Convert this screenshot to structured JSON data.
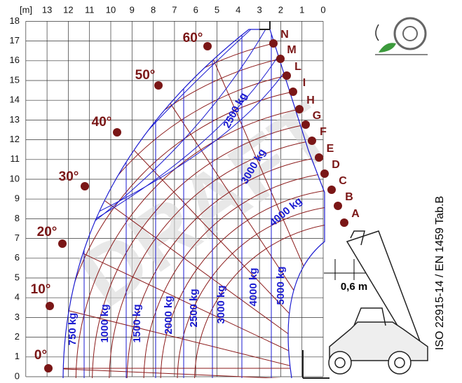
{
  "axes": {
    "x_unit": "[m]",
    "x_ticks": [
      "13",
      "12",
      "11",
      "10",
      "9",
      "8",
      "7",
      "6",
      "5",
      "4",
      "3",
      "2",
      "1",
      "0"
    ],
    "y_ticks": [
      "0",
      "1",
      "2",
      "3",
      "4",
      "5",
      "6",
      "7",
      "8",
      "9",
      "10",
      "11",
      "12",
      "13",
      "14",
      "15",
      "16",
      "17",
      "18"
    ]
  },
  "angles": [
    "0°",
    "10°",
    "20°",
    "30°",
    "40°",
    "50°",
    "60°"
  ],
  "boom_positions": [
    "A",
    "B",
    "C",
    "D",
    "E",
    "F",
    "G",
    "H",
    "I",
    "L",
    "M",
    "N"
  ],
  "load_labels": {
    "vertical": [
      "750 kg",
      "1000 kg",
      "1500 kg",
      "2000 kg",
      "2500 kg",
      "3000 kg",
      "4000 kg",
      "5000 kg"
    ],
    "diagonal": [
      "2500 kg",
      "3000 kg",
      "4000 kg"
    ]
  },
  "dimension": "0,6 m",
  "watermark": "DRAFT",
  "standard": "ISO 22915-14 / EN 1459 Tab.B"
}
